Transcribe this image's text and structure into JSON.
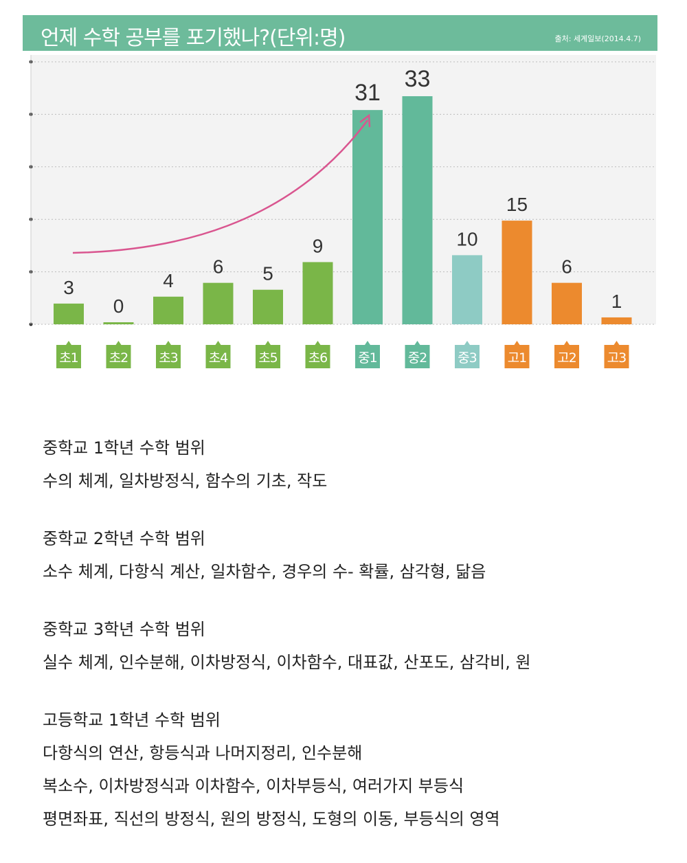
{
  "chart_data": {
    "type": "bar",
    "title": "언제 수학 공부를 포기했나?(단위:명)",
    "source": "출처: 세계일보(2014.4.7)",
    "categories": [
      "초1",
      "초2",
      "초3",
      "초4",
      "초5",
      "초6",
      "중1",
      "중2",
      "중3",
      "고1",
      "고2",
      "고3"
    ],
    "values": [
      3,
      0,
      4,
      6,
      5,
      9,
      31,
      33,
      10,
      15,
      6,
      1
    ],
    "colors": [
      "#7ab648",
      "#7ab648",
      "#7ab648",
      "#7ab648",
      "#7ab648",
      "#7ab648",
      "#62b99a",
      "#62b99a",
      "#8ecbc4",
      "#ec8a2e",
      "#ec8a2e",
      "#ec8a2e"
    ],
    "arrow_color": "#d9558f",
    "ylim": [
      0,
      35
    ],
    "xlabel": "",
    "ylabel": "",
    "grid": true
  },
  "notes": [
    {
      "heading": "중학교 1학년 수학 범위",
      "lines": [
        "수의 체계, 일차방정식, 함수의 기초, 작도"
      ]
    },
    {
      "heading": "중학교 2학년 수학 범위",
      "lines": [
        "소수 체계, 다항식 계산, 일차함수, 경우의 수- 확률, 삼각형, 닮음"
      ]
    },
    {
      "heading": "중학교 3학년 수학 범위",
      "lines": [
        "실수 체계, 인수분해, 이차방정식, 이차함수, 대표값, 산포도, 삼각비, 원"
      ]
    },
    {
      "heading": "고등학교 1학년 수학 범위",
      "lines": [
        "다항식의 연산, 항등식과 나머지정리, 인수분해",
        "복소수, 이차방정식과 이차함수, 이차부등식, 여러가지 부등식",
        "평면좌표, 직선의 방정식, 원의 방정식, 도형의 이동, 부등식의 영역"
      ]
    }
  ]
}
